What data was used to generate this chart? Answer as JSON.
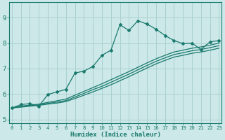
{
  "xlabel": "Humidex (Indice chaleur)",
  "bg_color": "#cce8e8",
  "line_color": "#1a7a6e",
  "grid_color": "#aad0d0",
  "x_ticks": [
    0,
    1,
    2,
    3,
    4,
    5,
    6,
    7,
    8,
    9,
    10,
    11,
    12,
    13,
    14,
    15,
    16,
    17,
    18,
    19,
    20,
    21,
    22,
    23
  ],
  "y_ticks": [
    5,
    6,
    7,
    8,
    9
  ],
  "xlim": [
    -0.3,
    23.3
  ],
  "ylim": [
    4.85,
    9.6
  ],
  "series": [
    {
      "x": [
        0,
        1,
        2,
        3,
        4,
        5,
        6,
        7,
        8,
        9,
        10,
        11,
        12,
        13,
        14,
        15,
        16,
        17,
        18,
        19,
        20,
        21,
        22,
        23
      ],
      "y": [
        5.45,
        5.58,
        5.62,
        5.52,
        5.98,
        6.08,
        6.18,
        6.82,
        6.9,
        7.08,
        7.52,
        7.72,
        8.72,
        8.5,
        8.88,
        8.75,
        8.55,
        8.3,
        8.1,
        7.98,
        8.0,
        7.75,
        8.05,
        8.1
      ],
      "markers": true
    },
    {
      "x": [
        0,
        1,
        2,
        3,
        4,
        5,
        6,
        7,
        8,
        9,
        10,
        11,
        12,
        13,
        14,
        15,
        16,
        17,
        18,
        19,
        20,
        21,
        22,
        23
      ],
      "y": [
        5.45,
        5.52,
        5.56,
        5.6,
        5.67,
        5.73,
        5.8,
        5.95,
        6.1,
        6.25,
        6.4,
        6.56,
        6.72,
        6.88,
        7.05,
        7.22,
        7.38,
        7.52,
        7.65,
        7.72,
        7.8,
        7.85,
        7.92,
        8.0
      ],
      "markers": false
    },
    {
      "x": [
        0,
        1,
        2,
        3,
        4,
        5,
        6,
        7,
        8,
        9,
        10,
        11,
        12,
        13,
        14,
        15,
        16,
        17,
        18,
        19,
        20,
        21,
        22,
        23
      ],
      "y": [
        5.45,
        5.5,
        5.54,
        5.57,
        5.63,
        5.68,
        5.74,
        5.88,
        6.02,
        6.17,
        6.3,
        6.46,
        6.62,
        6.78,
        6.95,
        7.12,
        7.28,
        7.42,
        7.55,
        7.62,
        7.7,
        7.75,
        7.82,
        7.9
      ],
      "markers": false
    },
    {
      "x": [
        0,
        1,
        2,
        3,
        4,
        5,
        6,
        7,
        8,
        9,
        10,
        11,
        12,
        13,
        14,
        15,
        16,
        17,
        18,
        19,
        20,
        21,
        22,
        23
      ],
      "y": [
        5.45,
        5.48,
        5.52,
        5.55,
        5.6,
        5.64,
        5.7,
        5.82,
        5.95,
        6.08,
        6.22,
        6.36,
        6.52,
        6.68,
        6.85,
        7.02,
        7.18,
        7.32,
        7.45,
        7.52,
        7.6,
        7.65,
        7.72,
        7.8
      ],
      "markers": false
    }
  ]
}
